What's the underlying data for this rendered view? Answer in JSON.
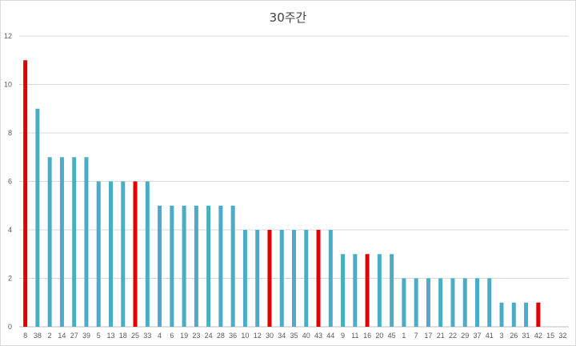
{
  "chart_data": {
    "type": "bar",
    "title": "30주간",
    "xlabel": "",
    "ylabel": "",
    "ylim": [
      0,
      12
    ],
    "yticks": [
      0,
      2,
      4,
      6,
      8,
      10,
      12
    ],
    "grid": true,
    "legend": "none",
    "categories": [
      "8",
      "38",
      "2",
      "14",
      "27",
      "39",
      "5",
      "13",
      "18",
      "25",
      "33",
      "4",
      "6",
      "19",
      "23",
      "24",
      "28",
      "36",
      "10",
      "12",
      "30",
      "34",
      "35",
      "40",
      "43",
      "44",
      "9",
      "11",
      "16",
      "20",
      "45",
      "1",
      "7",
      "17",
      "21",
      "22",
      "29",
      "37",
      "41",
      "3",
      "26",
      "31",
      "42",
      "15",
      "32"
    ],
    "values": [
      11,
      9,
      7,
      7,
      7,
      7,
      6,
      6,
      6,
      6,
      6,
      5,
      5,
      5,
      5,
      5,
      5,
      5,
      4,
      4,
      4,
      4,
      4,
      4,
      4,
      4,
      3,
      3,
      3,
      3,
      3,
      2,
      2,
      2,
      2,
      2,
      2,
      2,
      2,
      1,
      1,
      1,
      1,
      0,
      0
    ],
    "highlighted": [
      "8",
      "25",
      "30",
      "43",
      "16",
      "42"
    ],
    "colors": {
      "bar": "#4BACC6",
      "highlight": "#E00000",
      "grid": "#d9d9d9",
      "axis": "#bfbfbf"
    }
  }
}
